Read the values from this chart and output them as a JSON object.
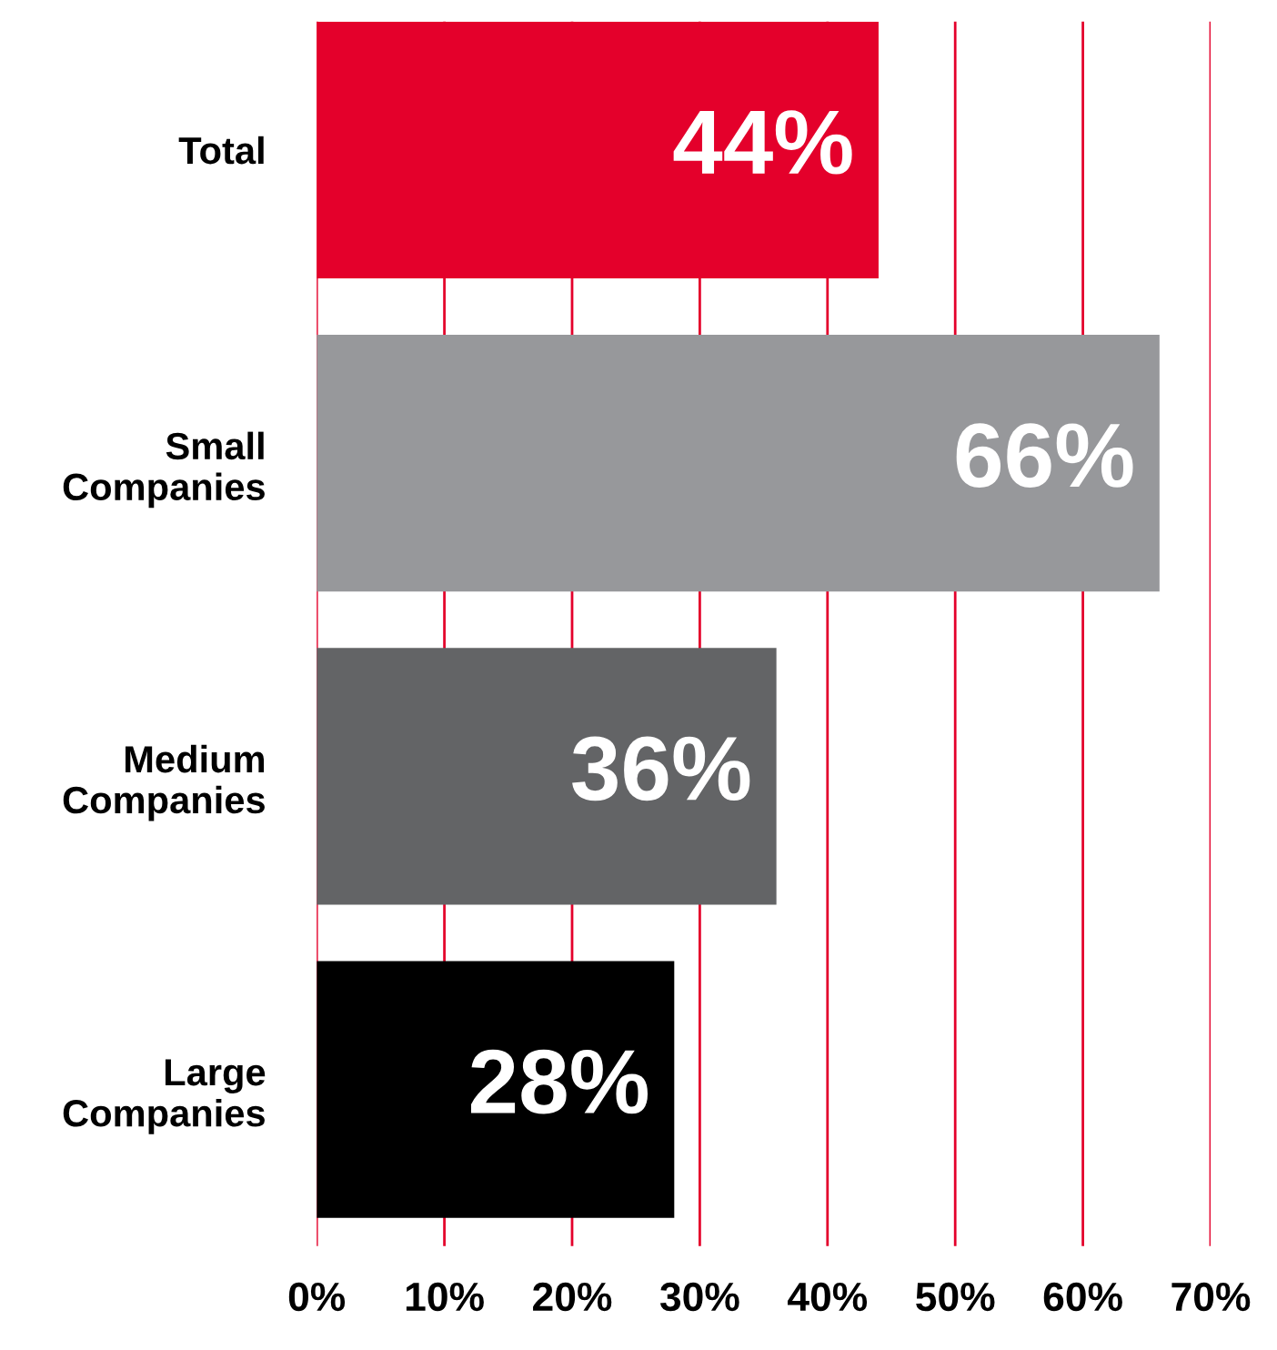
{
  "chart_data": {
    "type": "bar",
    "orientation": "horizontal",
    "categories": [
      "Total",
      "Small\nCompanies",
      "Medium\nCompanies",
      "Large\nCompanies"
    ],
    "values": [
      44,
      66,
      36,
      28
    ],
    "colors": [
      "#e4002b",
      "#97989b",
      "#636466",
      "#000000"
    ],
    "value_labels": [
      "44%",
      "66%",
      "36%",
      "28%"
    ],
    "xlim": [
      0,
      70
    ],
    "xticks": [
      {
        "value": 0,
        "label": "0%"
      },
      {
        "value": 10,
        "label": "10%"
      },
      {
        "value": 20,
        "label": "20%"
      },
      {
        "value": 30,
        "label": "30%"
      },
      {
        "value": 40,
        "label": "40%"
      },
      {
        "value": 50,
        "label": "50%"
      },
      {
        "value": 60,
        "label": "60%"
      },
      {
        "value": 70,
        "label": "70%"
      }
    ],
    "grid": "x",
    "legend": false
  }
}
